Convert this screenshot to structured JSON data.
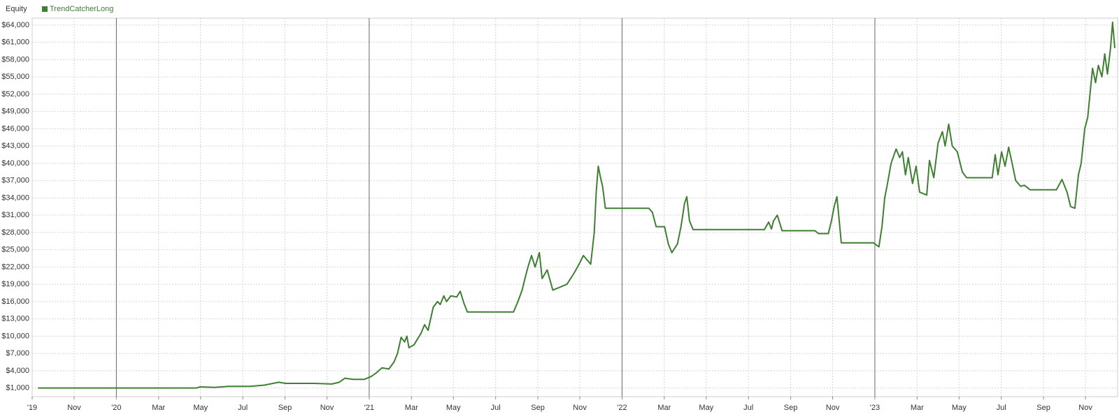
{
  "chart_data": {
    "type": "line",
    "title": "Equity",
    "x": [
      2019.69,
      2020.317,
      2020.332,
      2020.388,
      2020.444,
      2020.529,
      2020.585,
      2020.642,
      2020.67,
      2020.782,
      2020.853,
      2020.881,
      2020.904,
      2020.937,
      2020.98,
      2021.008,
      2021.03,
      2021.05,
      2021.078,
      2021.098,
      2021.112,
      2021.126,
      2021.14,
      2021.149,
      2021.157,
      2021.177,
      2021.205,
      2021.219,
      2021.233,
      2021.253,
      2021.27,
      2021.281,
      2021.295,
      2021.306,
      2021.323,
      2021.346,
      2021.36,
      2021.374,
      2021.388,
      2021.571,
      2021.588,
      2021.605,
      2021.616,
      2021.628,
      2021.642,
      2021.656,
      2021.673,
      2021.684,
      2021.704,
      2021.726,
      2021.754,
      2021.782,
      2021.811,
      2021.83,
      2021.847,
      2021.876,
      2021.89,
      2021.898,
      2021.906,
      2021.915,
      2021.923,
      2021.934,
      2022.106,
      2022.12,
      2022.135,
      2022.168,
      2022.183,
      2022.197,
      2022.219,
      2022.233,
      2022.247,
      2022.256,
      2022.267,
      2022.281,
      2022.563,
      2022.58,
      2022.591,
      2022.599,
      2022.614,
      2022.633,
      2022.763,
      2022.777,
      2022.816,
      2022.828,
      2022.839,
      2022.85,
      2022.859,
      2022.867,
      2022.994,
      2023.016,
      2023.028,
      2023.039,
      2023.05,
      2023.064,
      2023.084,
      2023.098,
      2023.109,
      2023.121,
      2023.132,
      2023.149,
      2023.163,
      2023.177,
      2023.205,
      2023.216,
      2023.233,
      2023.25,
      2023.267,
      2023.278,
      2023.292,
      2023.306,
      2023.326,
      2023.346,
      2023.363,
      2023.464,
      2023.476,
      2023.487,
      2023.501,
      2023.515,
      2023.529,
      2023.543,
      2023.557,
      2023.577,
      2023.591,
      2023.614,
      2023.718,
      2023.74,
      2023.76,
      2023.774,
      2023.791,
      2023.805,
      2023.816,
      2023.83,
      2023.842,
      2023.853,
      2023.861,
      2023.873,
      2023.884,
      2023.898,
      2023.909,
      2023.92,
      2023.932,
      2023.94,
      2023.949
    ],
    "series": [
      {
        "name": "TrendCatcherLong",
        "color": "#3f7f32",
        "values": [
          1000,
          1000,
          1200,
          1100,
          1300,
          1300,
          1500,
          2000,
          1800,
          1800,
          1700,
          2000,
          2700,
          2500,
          2500,
          3000,
          3700,
          4500,
          4300,
          5500,
          7000,
          9800,
          9000,
          10000,
          8000,
          8500,
          10500,
          12000,
          11000,
          15000,
          16000,
          15500,
          17000,
          16000,
          17000,
          16800,
          17800,
          15800,
          14200,
          14200,
          16000,
          18000,
          20000,
          22000,
          24000,
          22000,
          24500,
          20000,
          21500,
          18000,
          18500,
          19000,
          21000,
          22500,
          24000,
          22500,
          28000,
          35000,
          39500,
          37500,
          36000,
          32200,
          32200,
          31500,
          29000,
          29000,
          26000,
          24500,
          26000,
          29000,
          33000,
          34200,
          30000,
          28500,
          28500,
          29800,
          28600,
          30000,
          31000,
          28300,
          28300,
          27800,
          27800,
          30000,
          32500,
          34200,
          30000,
          26200,
          26200,
          25500,
          29000,
          34000,
          36500,
          40000,
          42500,
          41000,
          42000,
          38000,
          41000,
          36500,
          39500,
          35000,
          34500,
          40500,
          37500,
          43500,
          45500,
          43000,
          46800,
          43000,
          42000,
          38500,
          37500,
          37500,
          41500,
          38000,
          42000,
          39500,
          42800,
          40000,
          37000,
          36000,
          36200,
          35400,
          35400,
          37200,
          35000,
          32500,
          32200,
          38000,
          40000,
          46000,
          48000,
          53000,
          56500,
          54000,
          57000,
          55000,
          59000,
          55500,
          60000,
          64500,
          60000
        ]
      }
    ],
    "xlim": [
      2019.667,
      2023.96
    ],
    "xticks": [
      {
        "value": 2019.667,
        "label": "'19"
      },
      {
        "value": 2019.833,
        "label": "Nov"
      },
      {
        "value": 2020,
        "label": "'20"
      },
      {
        "value": 2020.167,
        "label": "Mar"
      },
      {
        "value": 2020.333,
        "label": "May"
      },
      {
        "value": 2020.5,
        "label": "Jul"
      },
      {
        "value": 2020.667,
        "label": "Sep"
      },
      {
        "value": 2020.833,
        "label": "Nov"
      },
      {
        "value": 2021,
        "label": "'21"
      },
      {
        "value": 2021.167,
        "label": "Mar"
      },
      {
        "value": 2021.333,
        "label": "May"
      },
      {
        "value": 2021.5,
        "label": "Jul"
      },
      {
        "value": 2021.667,
        "label": "Sep"
      },
      {
        "value": 2021.833,
        "label": "Nov"
      },
      {
        "value": 2022,
        "label": "'22"
      },
      {
        "value": 2022.167,
        "label": "Mar"
      },
      {
        "value": 2022.333,
        "label": "May"
      },
      {
        "value": 2022.5,
        "label": "Jul"
      },
      {
        "value": 2022.667,
        "label": "Sep"
      },
      {
        "value": 2022.833,
        "label": "Nov"
      },
      {
        "value": 2023,
        "label": "'23"
      },
      {
        "value": 2023.167,
        "label": "Mar"
      },
      {
        "value": 2023.333,
        "label": "May"
      },
      {
        "value": 2023.5,
        "label": "Jul"
      },
      {
        "value": 2023.667,
        "label": "Sep"
      },
      {
        "value": 2023.833,
        "label": "Nov"
      }
    ],
    "ylim": [
      -500,
      65200
    ],
    "yticks": [
      {
        "value": 1000,
        "label": "$1,000"
      },
      {
        "value": 4000,
        "label": "$4,000"
      },
      {
        "value": 7000,
        "label": "$7,000"
      },
      {
        "value": 10000,
        "label": "$10,000"
      },
      {
        "value": 13000,
        "label": "$13,000"
      },
      {
        "value": 16000,
        "label": "$16,000"
      },
      {
        "value": 19000,
        "label": "$19,000"
      },
      {
        "value": 22000,
        "label": "$22,000"
      },
      {
        "value": 25000,
        "label": "$25,000"
      },
      {
        "value": 28000,
        "label": "$28,000"
      },
      {
        "value": 31000,
        "label": "$31,000"
      },
      {
        "value": 34000,
        "label": "$34,000"
      },
      {
        "value": 37000,
        "label": "$37,000"
      },
      {
        "value": 40000,
        "label": "$40,000"
      },
      {
        "value": 43000,
        "label": "$43,000"
      },
      {
        "value": 46000,
        "label": "$46,000"
      },
      {
        "value": 49000,
        "label": "$49,000"
      },
      {
        "value": 52000,
        "label": "$52,000"
      },
      {
        "value": 55000,
        "label": "$55,000"
      },
      {
        "value": 58000,
        "label": "$58,000"
      },
      {
        "value": 61000,
        "label": "$61,000"
      },
      {
        "value": 64000,
        "label": "$64,000"
      }
    ],
    "grid": true
  }
}
